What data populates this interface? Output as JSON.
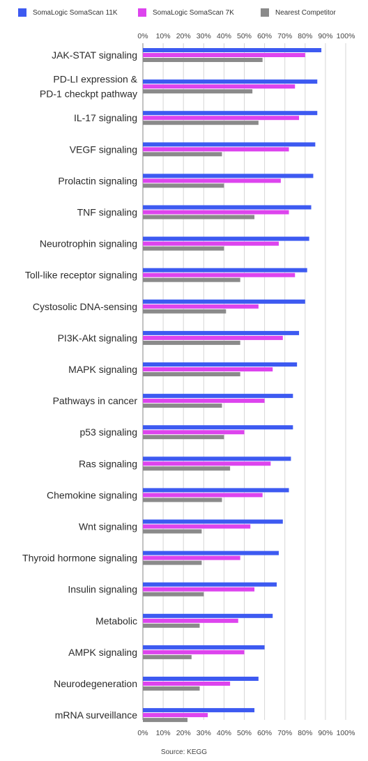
{
  "chart_data": {
    "type": "bar",
    "orientation": "horizontal",
    "title": "",
    "xlabel": "",
    "ylabel": "",
    "xlim": [
      0,
      100
    ],
    "x_ticks": [
      "0%",
      "10%",
      "20%",
      "30%",
      "40%",
      "50%",
      "60%",
      "70%",
      "80%",
      "90%",
      "100%"
    ],
    "grid": true,
    "legend_position": "top",
    "categories": [
      [
        "JAK-STAT signaling"
      ],
      [
        "PD-LI expression &",
        "PD-1 checkpt pathway"
      ],
      [
        "IL-17 signaling"
      ],
      [
        "VEGF signaling"
      ],
      [
        "Prolactin signaling"
      ],
      [
        "TNF signaling"
      ],
      [
        "Neurotrophin signaling"
      ],
      [
        "Toll-like receptor signaling"
      ],
      [
        "Cystosolic DNA-sensing"
      ],
      [
        "PI3K-Akt signaling"
      ],
      [
        "MAPK signaling"
      ],
      [
        "Pathways in cancer"
      ],
      [
        "p53 signaling"
      ],
      [
        "Ras signaling"
      ],
      [
        "Chemokine signaling"
      ],
      [
        "Wnt signaling"
      ],
      [
        "Thyroid hormone signaling"
      ],
      [
        "Insulin signaling"
      ],
      [
        "Metabolic"
      ],
      [
        "AMPK signaling"
      ],
      [
        "Neurodegeneration"
      ],
      [
        "mRNA surveillance"
      ]
    ],
    "series": [
      {
        "name": "SomaLogic SomaScan 11K",
        "color": "#3d5af1",
        "values": [
          88,
          86,
          86,
          85,
          84,
          83,
          82,
          81,
          80,
          77,
          76,
          74,
          74,
          73,
          72,
          69,
          67,
          66,
          64,
          60,
          57,
          55
        ]
      },
      {
        "name": "SomaLogic SomaScan 7K",
        "color": "#dd44ee",
        "values": [
          80,
          75,
          77,
          72,
          68,
          72,
          67,
          75,
          57,
          69,
          64,
          60,
          50,
          63,
          59,
          53,
          48,
          55,
          47,
          50,
          43,
          32
        ]
      },
      {
        "name": "Nearest Competitor",
        "color": "#8a8a8a",
        "values": [
          59,
          54,
          57,
          39,
          40,
          55,
          40,
          48,
          41,
          48,
          48,
          39,
          40,
          43,
          39,
          29,
          29,
          30,
          28,
          24,
          28,
          22
        ]
      }
    ],
    "source": "Source: KEGG"
  }
}
